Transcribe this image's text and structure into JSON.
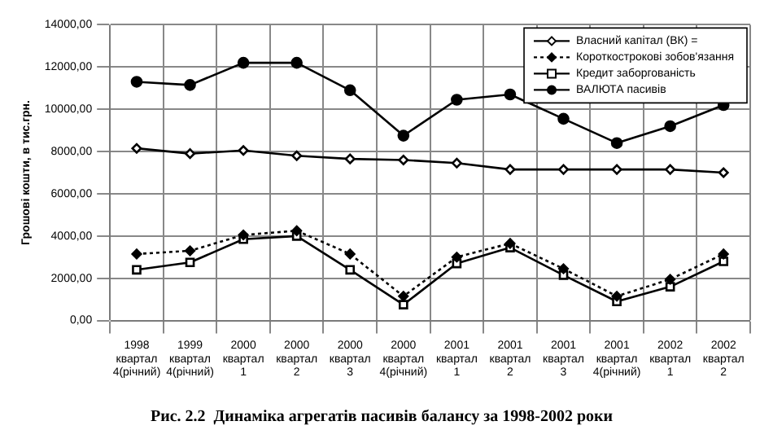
{
  "chart_data": {
    "type": "line",
    "title": "Рис. 2.2  Динаміка агрегатів пасивів балансу за 1998-2002 роки",
    "ylabel": "Грошові кошти, в тис.грн.",
    "categories": [
      "1998\nквартал\n4(річний)",
      "1999\nквартал\n4(річний)",
      "2000\nквартал\n1",
      "2000\nквартал\n2",
      "2000\nквартал\n3",
      "2000\nквартал\n4(річний)",
      "2001\nквартал\n1",
      "2001\nквартал\n2",
      "2001\nквартал\n3",
      "2001\nквартал\n4(річний)",
      "2002\nквартал\n1",
      "2002\nквартал\n2"
    ],
    "series": [
      {
        "name": "Власний капітал (ВК) =",
        "color": "#000000",
        "marker": "diamond",
        "line_style": "solid",
        "values": [
          8150,
          7900,
          8050,
          7800,
          7650,
          7600,
          7450,
          7150,
          7150,
          7150,
          7150,
          7000
        ]
      },
      {
        "name": "Короткострокові зобов'язання",
        "color": "#000000",
        "marker": "diamond",
        "line_style": "dotted",
        "values": [
          3150,
          3300,
          4050,
          4250,
          3150,
          1150,
          3000,
          3650,
          2450,
          1150,
          1950,
          3150
        ]
      },
      {
        "name": "Кредит заборгованість",
        "color": "#000000",
        "marker": "square",
        "line_style": "solid",
        "values": [
          2400,
          2750,
          3850,
          4000,
          2400,
          750,
          2700,
          3450,
          2150,
          900,
          1600,
          2800
        ]
      },
      {
        "name": "ВАЛЮТА пасивів",
        "color": "#000000",
        "marker": "circle",
        "line_style": "solid",
        "values": [
          11300,
          11150,
          12200,
          12200,
          10900,
          8750,
          10450,
          10700,
          9550,
          8400,
          9200,
          10200
        ]
      }
    ],
    "ylim": [
      0,
      14000
    ],
    "yticks": [
      {
        "value": 0,
        "label": "0,00"
      },
      {
        "value": 2000,
        "label": "2000,00"
      },
      {
        "value": 4000,
        "label": "4000,00"
      },
      {
        "value": 6000,
        "label": "6000,00"
      },
      {
        "value": 8000,
        "label": "8000,00"
      },
      {
        "value": 10000,
        "label": "10000,00"
      },
      {
        "value": 12000,
        "label": "12000,00"
      },
      {
        "value": 14000,
        "label": "14000,00"
      }
    ],
    "grid": true,
    "legend": "top right"
  }
}
